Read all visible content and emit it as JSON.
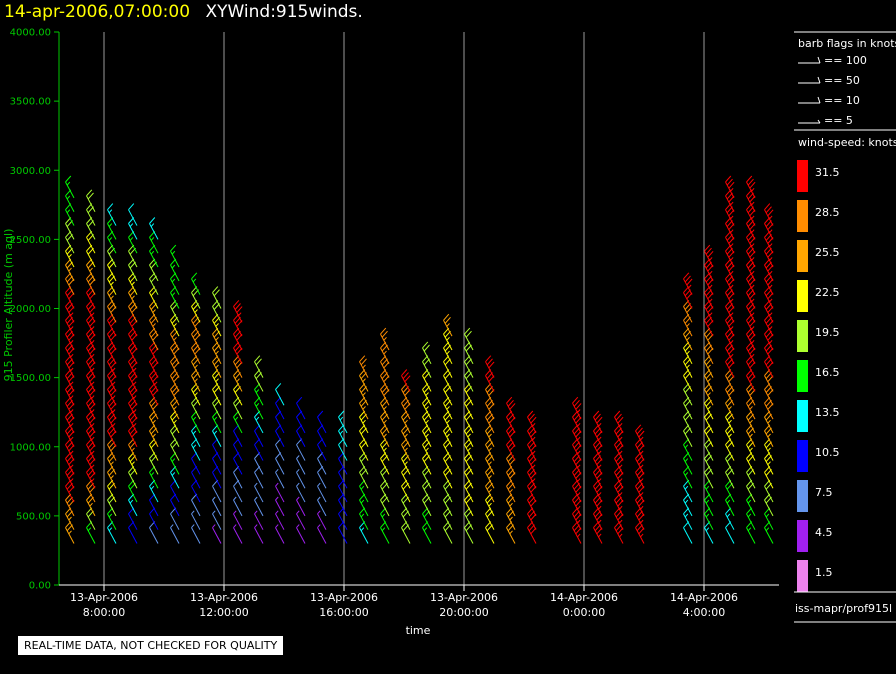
{
  "title": {
    "date": "14-apr-2006,07:00:00",
    "name": "XYWind:915winds."
  },
  "qc_note": "REAL-TIME DATA, NOT CHECKED FOR QUALITY",
  "source_label": "iss-mapr/prof915l",
  "chart_data": {
    "type": "wind-barb time-height plot",
    "ylabel": "915 Profiler Altitude (m agl)",
    "xlabel": "time",
    "ylim": [
      0,
      4000
    ],
    "y_ticks": [
      "0.00",
      "500.00",
      "1000.00",
      "1500.00",
      "2000.00",
      "2500.00",
      "3000.00",
      "3500.00",
      "4000.00"
    ],
    "xlim_hours": [
      6.5,
      30.5
    ],
    "x_ticks": [
      {
        "hour": 8,
        "date": "13-Apr-2006",
        "time": "8:00:00"
      },
      {
        "hour": 12,
        "date": "13-Apr-2006",
        "time": "12:00:00"
      },
      {
        "hour": 16,
        "date": "13-Apr-2006",
        "time": "16:00:00"
      },
      {
        "hour": 20,
        "date": "13-Apr-2006",
        "time": "20:00:00"
      },
      {
        "hour": 24,
        "date": "14-Apr-2006",
        "time": "0:00:00"
      },
      {
        "hour": 28,
        "date": "14-Apr-2006",
        "time": "4:00:00"
      }
    ],
    "grid": "vertical lines at major time ticks",
    "barb_legend": {
      "title": "barb flags in knots",
      "entries": [
        "== 100",
        "== 50",
        "== 10",
        "== 5"
      ]
    },
    "speed_legend": {
      "title": "wind-speed: knots",
      "levels": [
        {
          "label": "31.5",
          "color": "#ff0000"
        },
        {
          "label": "28.5",
          "color": "#ff8c00"
        },
        {
          "label": "25.5",
          "color": "#ffa500"
        },
        {
          "label": "22.5",
          "color": "#ffff00"
        },
        {
          "label": "19.5",
          "color": "#adff2f"
        },
        {
          "label": "16.5",
          "color": "#00ff00"
        },
        {
          "label": "13.5",
          "color": "#00ffff"
        },
        {
          "label": "10.5",
          "color": "#0000ff"
        },
        {
          "label": "7.5",
          "color": "#6495ed"
        },
        {
          "label": "4.5",
          "color": "#a020f0"
        },
        {
          "label": "1.5",
          "color": "#ee82ee"
        }
      ]
    },
    "wind_profiles": [
      {
        "hour": 7.0,
        "alt_min": 300,
        "alt_max": 2800,
        "speed_kt": [
          24,
          33,
          33,
          33,
          33,
          20,
          15
        ]
      },
      {
        "hour": 7.7,
        "alt_min": 300,
        "alt_max": 2700,
        "speed_kt": [
          16,
          33,
          33,
          33,
          33,
          22,
          19
        ]
      },
      {
        "hour": 8.4,
        "alt_min": 300,
        "alt_max": 2600,
        "speed_kt": [
          14,
          24,
          33,
          33,
          30,
          21,
          13
        ]
      },
      {
        "hour": 9.1,
        "alt_min": 300,
        "alt_max": 2600,
        "speed_kt": [
          9,
          20,
          33,
          33,
          30,
          20,
          12
        ]
      },
      {
        "hour": 9.8,
        "alt_min": 300,
        "alt_max": 2500,
        "speed_kt": [
          8,
          15,
          25,
          33,
          28,
          19,
          14
        ]
      },
      {
        "hour": 10.5,
        "alt_min": 300,
        "alt_max": 2300,
        "speed_kt": [
          6,
          12,
          20,
          28,
          30,
          17,
          15
        ]
      },
      {
        "hour": 11.2,
        "alt_min": 300,
        "alt_max": 2100,
        "speed_kt": [
          6,
          10,
          15,
          25,
          30,
          16
        ]
      },
      {
        "hour": 11.9,
        "alt_min": 300,
        "alt_max": 2000,
        "speed_kt": [
          5,
          9,
          12,
          22,
          28,
          18
        ]
      },
      {
        "hour": 12.6,
        "alt_min": 300,
        "alt_max": 1900,
        "speed_kt": [
          4,
          8,
          10,
          20,
          31,
          33
        ]
      },
      {
        "hour": 13.3,
        "alt_min": 300,
        "alt_max": 1500,
        "speed_kt": [
          5,
          7,
          9,
          15,
          20
        ]
      },
      {
        "hour": 14.0,
        "alt_min": 300,
        "alt_max": 1300,
        "speed_kt": [
          4,
          6,
          9,
          12
        ]
      },
      {
        "hour": 14.7,
        "alt_min": 300,
        "alt_max": 1200,
        "speed_kt": [
          5,
          6,
          8,
          11
        ]
      },
      {
        "hour": 15.4,
        "alt_min": 300,
        "alt_max": 1100,
        "speed_kt": [
          4,
          7,
          9,
          11
        ]
      },
      {
        "hour": 16.1,
        "alt_min": 300,
        "alt_max": 1100,
        "speed_kt": [
          9,
          11,
          12,
          13
        ]
      },
      {
        "hour": 16.8,
        "alt_min": 300,
        "alt_max": 1500,
        "speed_kt": [
          14,
          17,
          21,
          24,
          27
        ]
      },
      {
        "hour": 17.5,
        "alt_min": 300,
        "alt_max": 1700,
        "speed_kt": [
          16,
          20,
          25,
          28,
          27
        ]
      },
      {
        "hour": 18.2,
        "alt_min": 300,
        "alt_max": 1400,
        "speed_kt": [
          19,
          22,
          26,
          30
        ]
      },
      {
        "hour": 18.9,
        "alt_min": 300,
        "alt_max": 1600,
        "speed_kt": [
          17,
          20,
          24,
          23,
          20
        ]
      },
      {
        "hour": 19.6,
        "alt_min": 300,
        "alt_max": 1800,
        "speed_kt": [
          18,
          21,
          23,
          22,
          24
        ]
      },
      {
        "hour": 20.3,
        "alt_min": 300,
        "alt_max": 1700,
        "speed_kt": [
          20,
          22,
          23,
          21,
          20
        ]
      },
      {
        "hour": 21.0,
        "alt_min": 300,
        "alt_max": 1500,
        "speed_kt": [
          21,
          24,
          25,
          29,
          31
        ]
      },
      {
        "hour": 21.7,
        "alt_min": 300,
        "alt_max": 1200,
        "speed_kt": [
          24,
          27,
          30,
          32
        ]
      },
      {
        "hour": 22.4,
        "alt_min": 300,
        "alt_max": 1100,
        "speed_kt": [
          31,
          32,
          33,
          33
        ]
      },
      {
        "hour": 23.9,
        "alt_min": 300,
        "alt_max": 1200,
        "speed_kt": [
          33,
          33,
          33,
          33
        ]
      },
      {
        "hour": 24.6,
        "alt_min": 300,
        "alt_max": 1100,
        "speed_kt": [
          33,
          33,
          33,
          33
        ]
      },
      {
        "hour": 25.3,
        "alt_min": 300,
        "alt_max": 1100,
        "speed_kt": [
          33,
          33,
          33,
          33
        ]
      },
      {
        "hour": 26.0,
        "alt_min": 300,
        "alt_max": 1000,
        "speed_kt": [
          33,
          33,
          33
        ]
      },
      {
        "hour": 27.6,
        "alt_min": 300,
        "alt_max": 2100,
        "speed_kt": [
          12,
          16,
          20,
          24,
          33
        ]
      },
      {
        "hour": 28.3,
        "alt_min": 300,
        "alt_max": 2300,
        "speed_kt": [
          14,
          18,
          22,
          26,
          33,
          33
        ]
      },
      {
        "hour": 29.0,
        "alt_min": 300,
        "alt_max": 2800,
        "speed_kt": [
          12,
          20,
          24,
          33,
          33,
          33,
          33
        ]
      },
      {
        "hour": 29.7,
        "alt_min": 300,
        "alt_max": 2800,
        "speed_kt": [
          15,
          20,
          26,
          33,
          33,
          33,
          33
        ]
      },
      {
        "hour": 30.3,
        "alt_min": 300,
        "alt_max": 2600,
        "speed_kt": [
          16,
          22,
          28,
          33,
          33,
          33
        ]
      }
    ]
  }
}
